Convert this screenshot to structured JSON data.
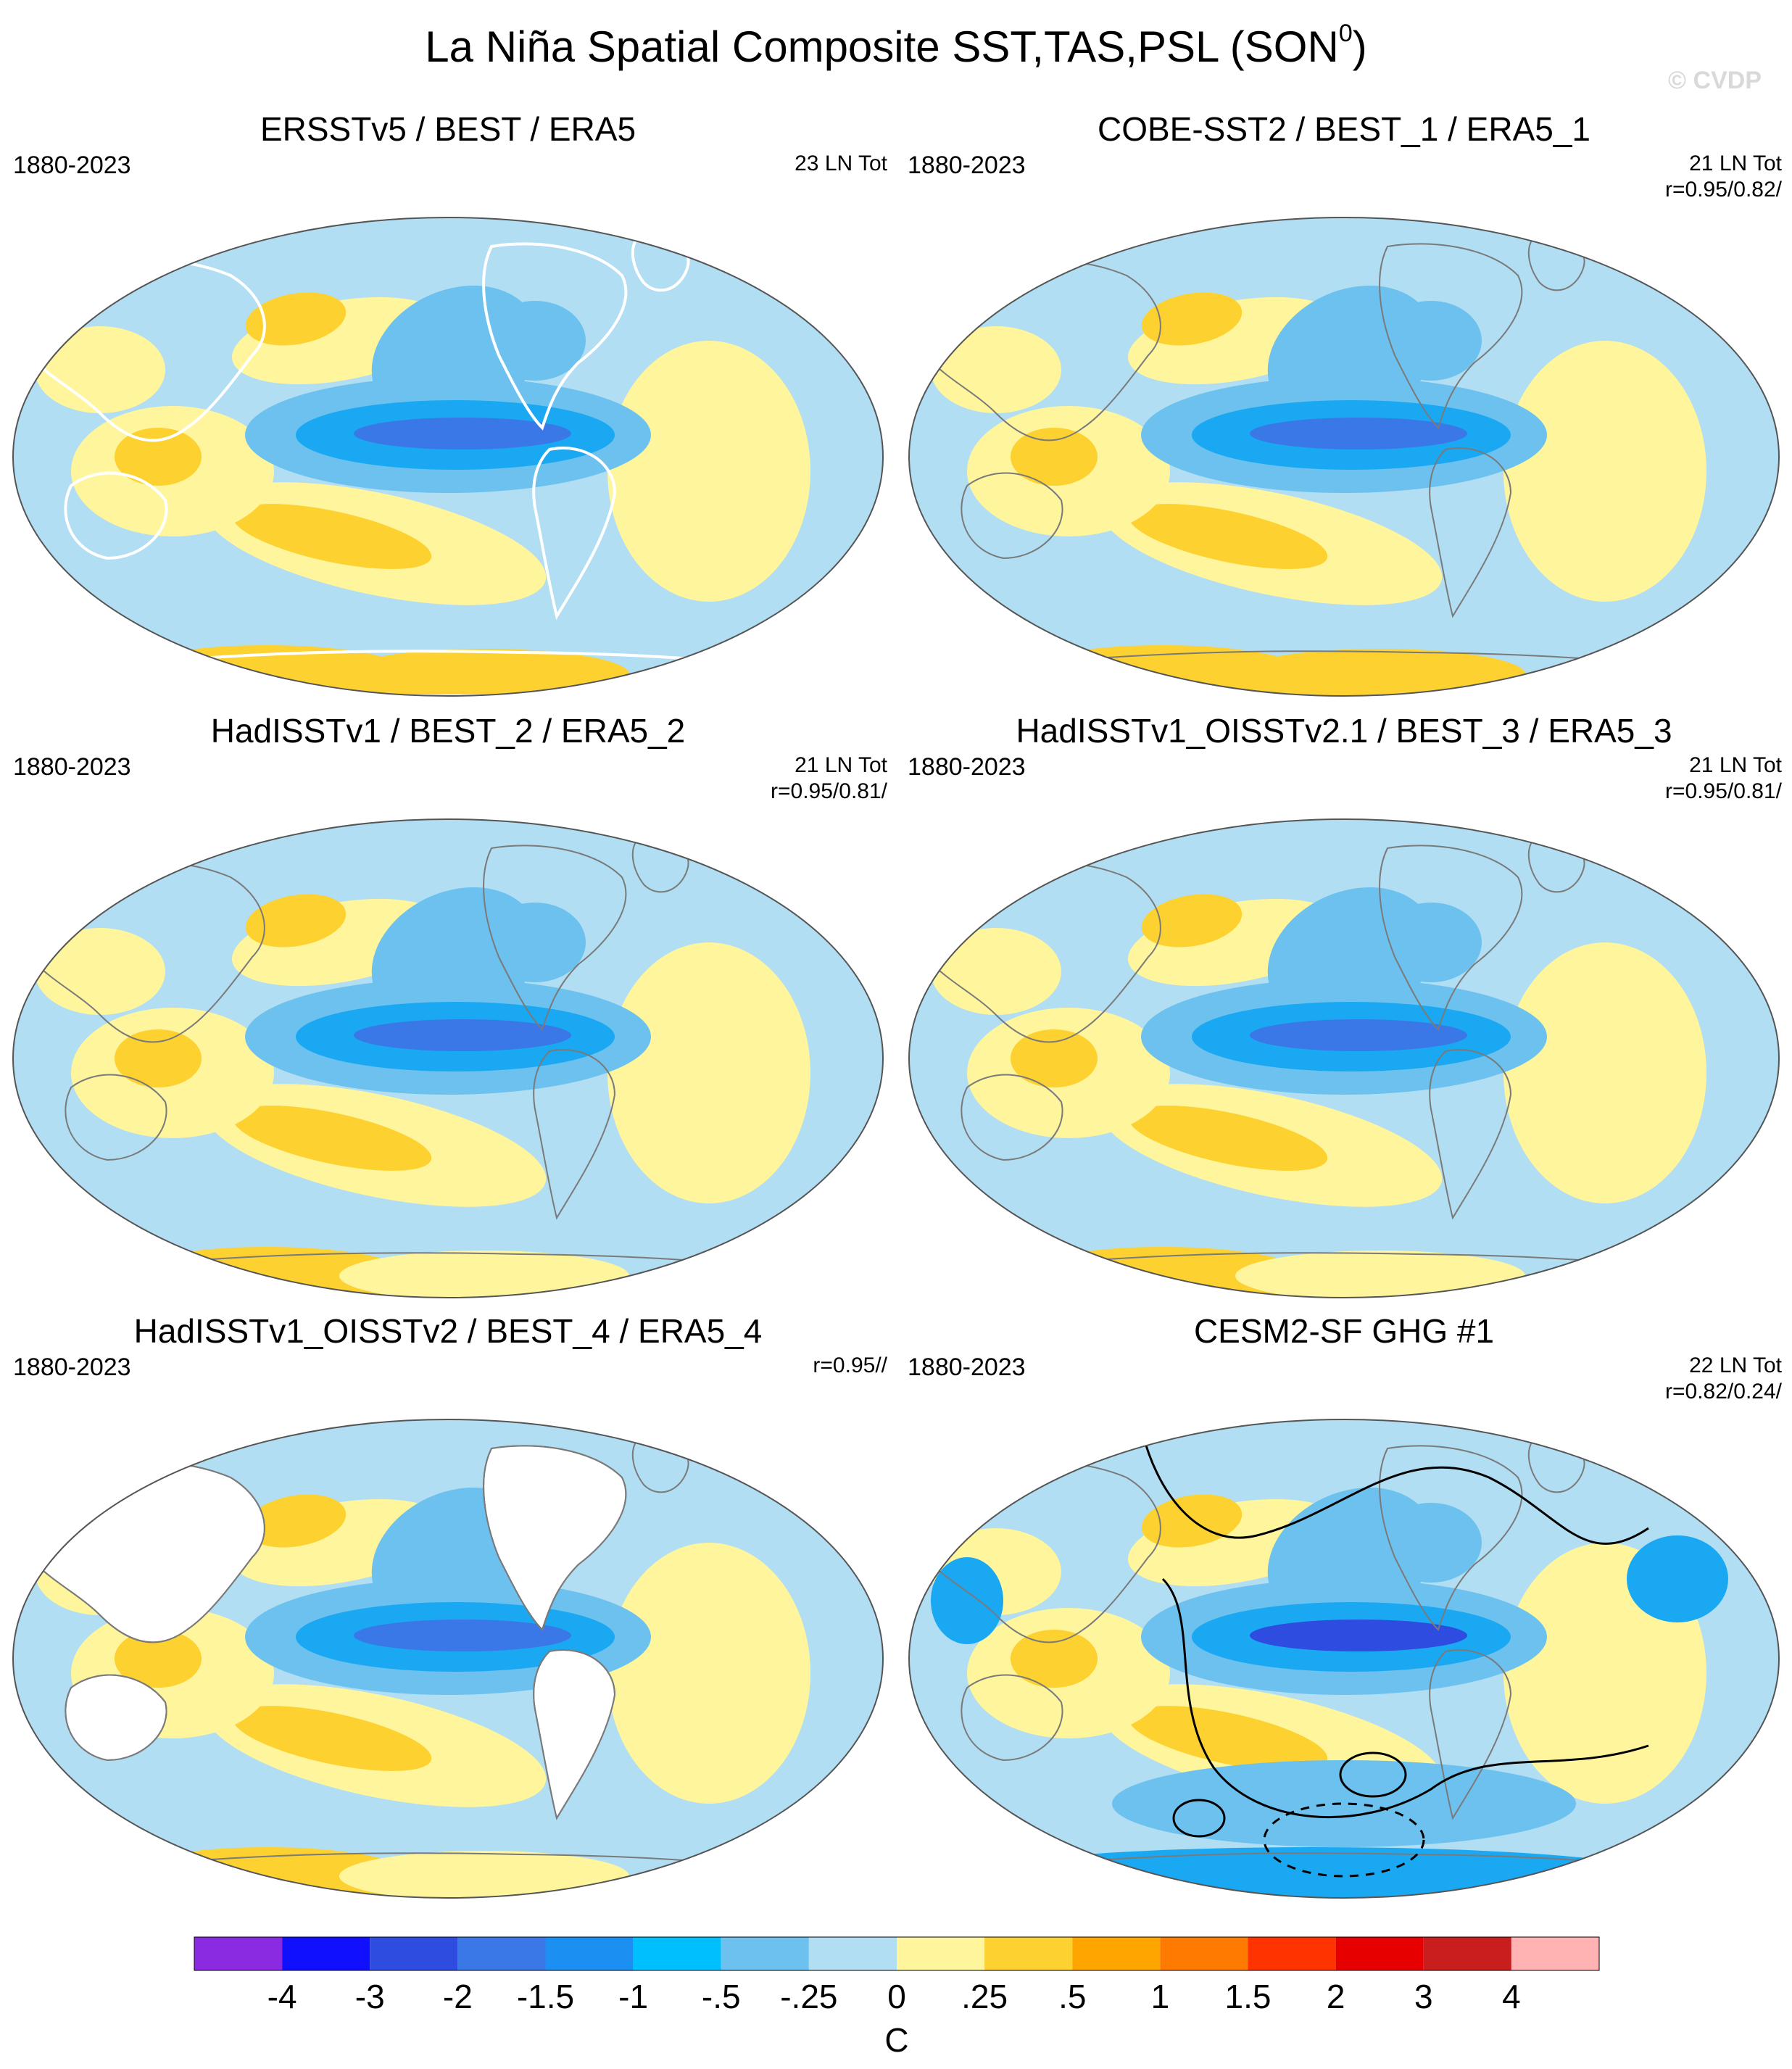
{
  "title": {
    "main": "La Niña Spatial Composite SST,TAS,PSL (SON",
    "superscript": "0",
    "close": ")"
  },
  "watermark": "© CVDP",
  "colors": {
    "ocean": "#b1def2",
    "coast": "#7a7a7a",
    "cold_strong": "#2e4ce0",
    "cold_mid": "#1aa8f2",
    "cold_weak": "#6cc1ef",
    "warm_weak": "#fff59d",
    "warm_mid": "#fdd12f",
    "warm_strong": "#ffa500"
  },
  "chart_data": {
    "type": "heatmap",
    "projection": "Robinson-like (Pacific-centered)",
    "variables": [
      "SST",
      "TAS",
      "PSL"
    ],
    "season": "SON",
    "units": "C",
    "panels": [
      {
        "title": "ERSSTv5 / BEST / ERA5",
        "period": "1880-2023",
        "stats": [
          "23 LN Tot"
        ],
        "psl_contours": false,
        "missing_land": false
      },
      {
        "title": "COBE-SST2 / BEST_1 / ERA5_1",
        "period": "1880-2023",
        "stats": [
          "21 LN Tot",
          "r=0.95/0.82/"
        ],
        "psl_contours": false,
        "missing_land": false
      },
      {
        "title": "HadISSTv1 / BEST_2 / ERA5_2",
        "period": "1880-2023",
        "stats": [
          "21 LN Tot",
          "r=0.95/0.81/"
        ],
        "psl_contours": false,
        "missing_land": false
      },
      {
        "title": "HadISSTv1_OISSTv2.1 / BEST_3 / ERA5_3",
        "period": "1880-2023",
        "stats": [
          "21 LN Tot",
          "r=0.95/0.81/"
        ],
        "psl_contours": false,
        "missing_land": false
      },
      {
        "title": "HadISSTv1_OISSTv2 / BEST_4 / ERA5_4",
        "period": "1880-2023",
        "stats": [
          "r=0.95//"
        ],
        "psl_contours": false,
        "missing_land": true
      },
      {
        "title": "CESM2-SF GHG #1",
        "period": "1880-2023",
        "stats": [
          "22 LN Tot",
          "r=0.82/0.24/"
        ],
        "psl_contours": true,
        "missing_land": false
      }
    ],
    "colorbar": {
      "label": "C",
      "levels": [
        "-4",
        "-3",
        "-2",
        "-1.5",
        "-1",
        "-.5",
        "-.25",
        "0",
        ".25",
        ".5",
        "1",
        "1.5",
        "2",
        "3",
        "4"
      ],
      "colors": [
        "#8a2be2",
        "#1010ff",
        "#2e4ce0",
        "#3a78e8",
        "#1c8ff2",
        "#00bfff",
        "#6cc1ef",
        "#b1def2",
        "#fff59d",
        "#fdd12f",
        "#ffa500",
        "#ff7a00",
        "#ff3300",
        "#e60000",
        "#c81e1e",
        "#ffb3b3"
      ]
    }
  }
}
